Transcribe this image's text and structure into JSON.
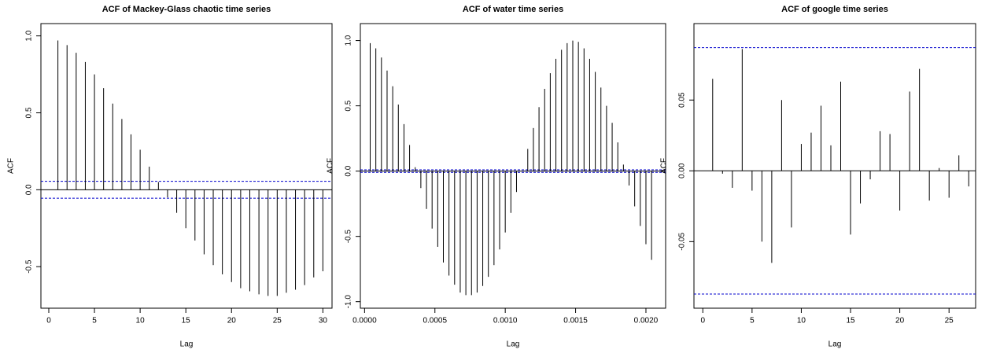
{
  "chart_data": [
    {
      "type": "stem",
      "title": "ACF of Mackey-Glass chaotic time series",
      "xlabel": "Lag",
      "ylabel": "ACF",
      "color": "#000000",
      "ci": 0.055,
      "ci_color": "#0000cc",
      "x": [
        1,
        2,
        3,
        4,
        5,
        6,
        7,
        8,
        9,
        10,
        11,
        12,
        13,
        14,
        15,
        16,
        17,
        18,
        19,
        20,
        21,
        22,
        23,
        24,
        25,
        26,
        27,
        28,
        29,
        30
      ],
      "values": [
        0.97,
        0.94,
        0.89,
        0.83,
        0.75,
        0.66,
        0.56,
        0.46,
        0.36,
        0.26,
        0.15,
        0.05,
        -0.05,
        -0.15,
        -0.25,
        -0.33,
        -0.42,
        -0.49,
        -0.55,
        -0.6,
        -0.64,
        -0.66,
        -0.68,
        -0.69,
        -0.69,
        -0.67,
        -0.65,
        -0.62,
        -0.57,
        -0.53
      ],
      "xlim": [
        -0.86,
        31
      ],
      "ylim": [
        -0.77,
        1.08
      ],
      "xticks": [
        0,
        5,
        10,
        15,
        20,
        25,
        30
      ],
      "yticks": [
        -0.5,
        {
          "value": 0,
          "label": "0.0"
        },
        0.5,
        {
          "value": 1,
          "label": "1.0"
        }
      ]
    },
    {
      "type": "stem",
      "title": "ACF of water time series",
      "xlabel": "Lag",
      "ylabel": "ACF",
      "color": "#000000",
      "ci": 0.01,
      "ci_color": "#0000cc",
      "x": [
        4e-05,
        8e-05,
        0.00012,
        0.00016,
        0.0002,
        0.00024,
        0.00028,
        0.00032,
        0.00036,
        0.0004,
        0.00044,
        0.00048,
        0.00052,
        0.00056,
        0.0006,
        0.00064,
        0.00068,
        0.00072,
        0.00076,
        0.0008,
        0.00084,
        0.00088,
        0.00092,
        0.00096,
        0.001,
        0.00104,
        0.00108,
        0.00112,
        0.00116,
        0.0012,
        0.00124,
        0.00128,
        0.00132,
        0.00136,
        0.0014,
        0.00144,
        0.00148,
        0.00152,
        0.00156,
        0.0016,
        0.00164,
        0.00168,
        0.00172,
        0.00176,
        0.0018,
        0.00184,
        0.00188,
        0.00192,
        0.00196,
        0.002,
        0.00204
      ],
      "values": [
        0.98,
        0.94,
        0.87,
        0.77,
        0.65,
        0.51,
        0.36,
        0.2,
        0.03,
        -0.13,
        -0.29,
        -0.44,
        -0.58,
        -0.7,
        -0.8,
        -0.87,
        -0.93,
        -0.95,
        -0.95,
        -0.93,
        -0.88,
        -0.81,
        -0.72,
        -0.6,
        -0.47,
        -0.32,
        -0.16,
        0,
        0.17,
        0.33,
        0.49,
        0.63,
        0.75,
        0.86,
        0.93,
        0.98,
        1,
        0.99,
        0.94,
        0.86,
        0.76,
        0.64,
        0.5,
        0.37,
        0.22,
        0.05,
        -0.11,
        -0.27,
        -0.42,
        -0.56,
        -0.68
      ],
      "xlim": [
        -3e-05,
        0.00214
      ],
      "ylim": [
        -1.05,
        1.13
      ],
      "xticks": [
        {
          "value": 0,
          "label": "0.0000"
        },
        {
          "value": 0.0005,
          "label": "0.0005"
        },
        {
          "value": 0.001,
          "label": "0.0010"
        },
        {
          "value": 0.0015,
          "label": "0.0015"
        },
        {
          "value": 0.002,
          "label": "0.0020"
        }
      ],
      "yticks": [
        {
          "value": -1,
          "label": "-1.0"
        },
        -0.5,
        {
          "value": 0,
          "label": "0.0"
        },
        0.5,
        {
          "value": 1,
          "label": "1.0"
        }
      ]
    },
    {
      "type": "stem",
      "title": "ACF of google time series",
      "xlabel": "Lag",
      "ylabel": "ACF",
      "color": "#000000",
      "ci": 0.087,
      "ci_color": "#0000cc",
      "x": [
        1,
        2,
        3,
        4,
        5,
        6,
        7,
        8,
        9,
        10,
        11,
        12,
        13,
        14,
        15,
        16,
        17,
        18,
        19,
        20,
        21,
        22,
        23,
        24,
        25,
        26,
        27
      ],
      "values": [
        0.065,
        -0.002,
        -0.012,
        0.086,
        -0.014,
        -0.05,
        -0.065,
        0.05,
        -0.04,
        0.019,
        0.027,
        0.046,
        0.018,
        0.063,
        -0.045,
        -0.023,
        -0.006,
        0.028,
        0.026,
        -0.028,
        0.056,
        0.072,
        -0.021,
        0.002,
        -0.019,
        0.011,
        -0.011
      ],
      "xlim": [
        -0.9,
        27.7
      ],
      "ylim": [
        -0.097,
        0.104
      ],
      "xticks": [
        0,
        5,
        10,
        15,
        20,
        25
      ],
      "yticks": [
        -0.05,
        {
          "value": 0,
          "label": "0.00"
        },
        0.05
      ]
    }
  ]
}
